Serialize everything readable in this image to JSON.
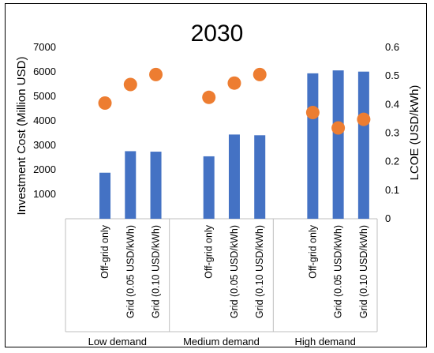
{
  "chart_data": {
    "type": "bar",
    "title": "2030",
    "groups": [
      "Low demand",
      "Medium demand",
      "High demand"
    ],
    "categories": [
      "Off-grid only",
      "Grid (0.05 USD/kWh)",
      "Grid (0.10 USD/kWh)",
      "Off-grid only",
      "Grid (0.05 USD/kWh)",
      "Grid (0.10 USD/kWh)",
      "Off-grid only",
      "Grid (0.05 USD/kWh)",
      "Grid (0.10 USD/kWh)"
    ],
    "ylabel": "Investment Cost (Million USD)",
    "y2label": "LCOE (USD/kWh)",
    "ylim": [
      0,
      7000
    ],
    "y2lim": [
      0,
      0.6
    ],
    "yticks": [
      "1000",
      "2000",
      "3000",
      "4000",
      "5000",
      "6000",
      "7000"
    ],
    "y2ticks": [
      "0",
      "0.1",
      "0.2",
      "0.3",
      "0.4",
      "0.5",
      "0.6"
    ],
    "grid": false,
    "series": [
      {
        "kind": "bar",
        "axis": "left",
        "color": "#4472c4",
        "values": [
          1880,
          2760,
          2740,
          2550,
          3440,
          3410,
          5940,
          6060,
          6010
        ]
      },
      {
        "kind": "scatter",
        "axis": "right",
        "color": "#ed7d31",
        "values": [
          0.405,
          0.47,
          0.505,
          0.425,
          0.475,
          0.505,
          0.372,
          0.318,
          0.348
        ]
      }
    ]
  }
}
